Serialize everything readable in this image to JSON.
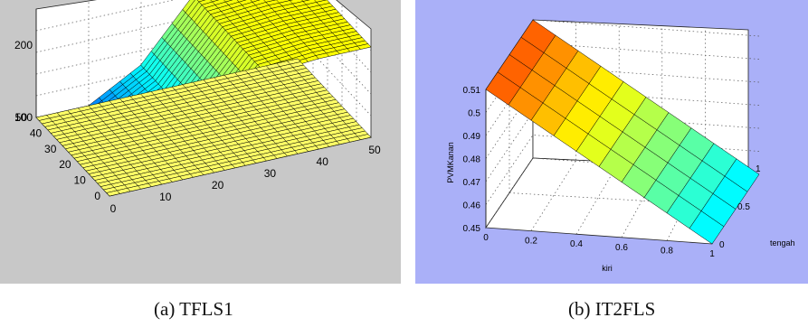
{
  "colors": {
    "panel_a_bg": "#c8c8c8",
    "panel_b_bg": "#aab0f8"
  },
  "captions": {
    "a": "(a) TFLS1",
    "b": "(b) IT2FLS"
  },
  "chart_data": [
    {
      "type": "surface",
      "title": "",
      "x_ticks": [
        "0",
        "10",
        "20",
        "30",
        "40",
        "50"
      ],
      "y_ticks": [
        "0",
        "10",
        "20",
        "30",
        "40",
        "50"
      ],
      "z_ticks": [
        "100",
        "200"
      ],
      "xlim": [
        0,
        50
      ],
      "ylim": [
        0,
        50
      ],
      "zlim": [
        100,
        250
      ],
      "grid": true,
      "surfaces": [
        {
          "name": "rising",
          "z_at_x": {
            "x": [
              0,
              10,
              20,
              30,
              40,
              50
            ],
            "z": [
              100,
              100,
              140,
              220,
              225,
              225
            ]
          }
        },
        {
          "name": "flat",
          "z": 100
        }
      ]
    },
    {
      "type": "surface",
      "title": "",
      "xlabel": "kiri",
      "ylabel": "tengah",
      "zlabel": "PVMKanan",
      "x_ticks": [
        "0",
        "0.2",
        "0.4",
        "0.6",
        "0.8",
        "1"
      ],
      "y_ticks": [
        "0",
        "0.5",
        "1"
      ],
      "z_ticks": [
        "0.45",
        "0.46",
        "0.47",
        "0.48",
        "0.49",
        "0.5",
        "0.51"
      ],
      "xlim": [
        0,
        1
      ],
      "ylim": [
        0,
        1
      ],
      "zlim": [
        0.45,
        0.51
      ],
      "grid": true,
      "surface": {
        "x": [
          0,
          1
        ],
        "z": [
          0.51,
          0.45
        ],
        "y_dependence": "none"
      }
    }
  ]
}
